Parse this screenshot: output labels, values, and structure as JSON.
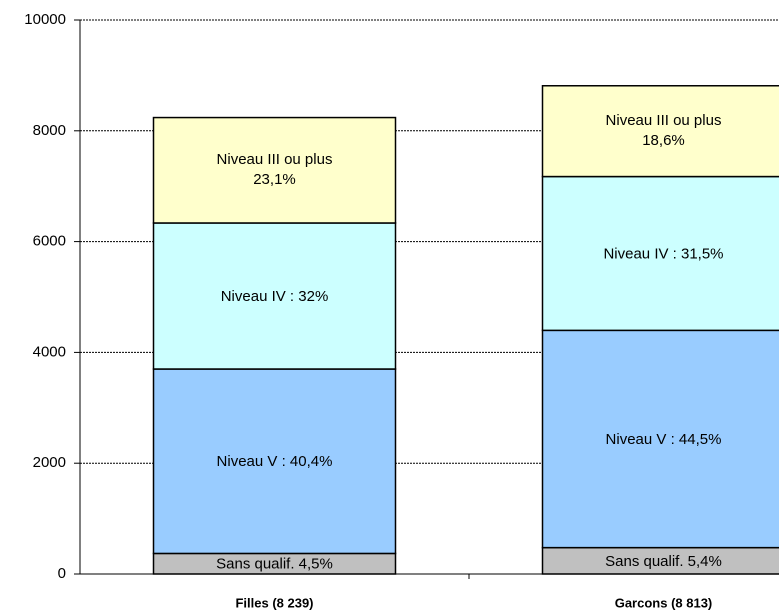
{
  "chart_data": {
    "type": "stacked_bar",
    "categories": [
      "Filles (8 239)",
      "Garcons (8 813)"
    ],
    "series": [
      {
        "color": "#c0c0c0",
        "values": [
          371,
          476
        ],
        "share_labels": [
          "Sans qualif.  4,5%",
          "Sans qualif.  5,4%"
        ]
      },
      {
        "color": "#99ccff",
        "values": [
          3329,
          3922
        ],
        "share_labels": [
          "Niveau V : 40,4%",
          "Niveau V : 44,5%"
        ]
      },
      {
        "color": "#ccffff",
        "values": [
          2636,
          2776
        ],
        "share_labels": [
          "Niveau IV : 32%",
          "Niveau IV : 31,5%"
        ]
      },
      {
        "color": "#ffffcc",
        "values": [
          1903,
          1639
        ],
        "share_labels": [
          [
            "Niveau III ou plus",
            "23,1%"
          ],
          [
            "Niveau III ou plus",
            "18,6%"
          ]
        ]
      }
    ],
    "ylim": [
      0,
      10000
    ],
    "yticks": [
      0,
      2000,
      4000,
      6000,
      8000,
      10000
    ],
    "grid": true
  }
}
